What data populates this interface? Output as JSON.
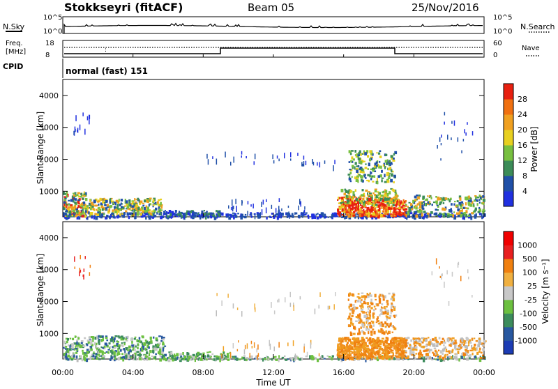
{
  "header": {
    "station": "Stokkseyri (fitACF)",
    "beam": "Beam 05",
    "date": "25/Nov/2016"
  },
  "top_panels": {
    "nsky_label": "N.Sky",
    "nsearch_label": "N.Search",
    "nsky_ticks": [
      "10^5",
      "10^0"
    ],
    "freq_label_1": "Freq.",
    "freq_label_2": "[MHz]",
    "freq_ticks": [
      "18",
      "8"
    ],
    "nave_label": "Nave",
    "nave_ticks": [
      "60",
      "0"
    ],
    "cpid_label": "CPID",
    "cpid_value": "normal (fast) 151"
  },
  "chart_data": [
    {
      "type": "heatmap",
      "title": "",
      "ylabel": "Slant Range [km]",
      "xlabel": "",
      "colorbar_label": "Power [dB]",
      "colorbar_ticks": [
        "28",
        "24",
        "20",
        "16",
        "12",
        "8",
        "4"
      ],
      "colors": [
        "#2030e0",
        "#2050a8",
        "#3c8c58",
        "#78c040",
        "#e8d020",
        "#f0a020",
        "#f07010",
        "#e82010"
      ],
      "yticks": [
        "4000",
        "3000",
        "2000",
        "1000"
      ],
      "ylim": [
        200,
        4500
      ],
      "xlim": [
        "00:00",
        "24:00"
      ]
    },
    {
      "type": "heatmap",
      "title": "",
      "ylabel": "Slant Range [km]",
      "xlabel": "Time UT",
      "colorbar_label": "Velocity  [m s⁻¹]",
      "colorbar_ticks": [
        "1000",
        "500",
        "100",
        "25",
        "-25",
        "-100",
        "-500",
        "-1000"
      ],
      "colors": [
        "#1c3cb4",
        "#2858a0",
        "#3c8c5c",
        "#6cc040",
        "#c8c8c8",
        "#f0b040",
        "#f08010",
        "#e82020",
        "#f00000"
      ],
      "yticks": [
        "4000",
        "3000",
        "2000",
        "1000"
      ],
      "xticks": [
        "00:00",
        "04:00",
        "08:00",
        "12:00",
        "16:00",
        "20:00",
        "00:00"
      ],
      "ylim": [
        200,
        4500
      ],
      "xlim": [
        "00:00",
        "24:00"
      ]
    }
  ]
}
